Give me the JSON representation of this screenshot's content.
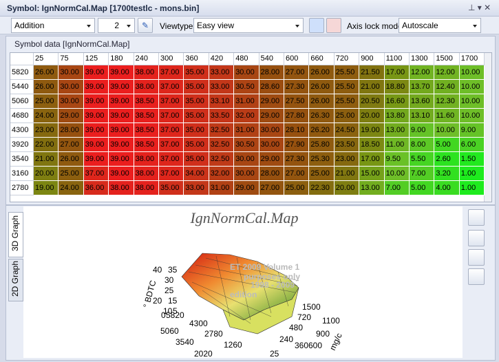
{
  "title_bar": {
    "title": "Symbol: IgnNormCal.Map [1700testlc - mons.bin]"
  },
  "toolbar": {
    "operation": "Addition",
    "factor": "2",
    "viewtype_label": "Viewtype",
    "viewtype": "Easy view",
    "axis_lock_label": "Axis lock mode",
    "axis_lock": "Autoscale"
  },
  "table": {
    "caption": "Symbol data [IgnNormCal.Map]",
    "columns": [
      "25",
      "75",
      "125",
      "180",
      "240",
      "300",
      "360",
      "420",
      "480",
      "540",
      "600",
      "660",
      "720",
      "900",
      "1100",
      "1300",
      "1500",
      "1700"
    ],
    "rows": [
      {
        "label": "5820",
        "values": [
          "26.00",
          "30.00",
          "39.00",
          "39.00",
          "38.00",
          "37.00",
          "35.00",
          "33.00",
          "30.00",
          "28.00",
          "27.00",
          "26.00",
          "25.50",
          "21.50",
          "17.00",
          "12.00",
          "12.00",
          "10.00"
        ]
      },
      {
        "label": "5440",
        "values": [
          "26.00",
          "30.00",
          "39.00",
          "39.00",
          "38.00",
          "37.00",
          "35.00",
          "33.00",
          "30.50",
          "28.60",
          "27.30",
          "26.00",
          "25.50",
          "21.00",
          "18.80",
          "13.70",
          "12.40",
          "10.00"
        ]
      },
      {
        "label": "5060",
        "values": [
          "25.00",
          "30.00",
          "39.00",
          "39.00",
          "38.50",
          "37.00",
          "35.00",
          "33.10",
          "31.00",
          "29.00",
          "27.50",
          "26.00",
          "25.50",
          "20.50",
          "16.60",
          "13.60",
          "12.30",
          "10.00"
        ]
      },
      {
        "label": "4680",
        "values": [
          "24.00",
          "29.00",
          "39.00",
          "39.00",
          "38.50",
          "37.00",
          "35.00",
          "33.50",
          "32.00",
          "29.00",
          "27.80",
          "26.30",
          "25.00",
          "20.00",
          "13.80",
          "13.10",
          "11.60",
          "10.00"
        ]
      },
      {
        "label": "4300",
        "values": [
          "23.00",
          "28.00",
          "39.00",
          "39.00",
          "38.50",
          "37.00",
          "35.00",
          "32.50",
          "31.00",
          "30.00",
          "28.10",
          "26.20",
          "24.50",
          "19.00",
          "13.00",
          "9.00",
          "10.00",
          "9.00"
        ]
      },
      {
        "label": "3920",
        "values": [
          "22.00",
          "27.00",
          "39.00",
          "39.00",
          "38.50",
          "37.00",
          "35.00",
          "32.50",
          "30.50",
          "30.00",
          "27.90",
          "25.80",
          "23.50",
          "18.50",
          "11.00",
          "8.00",
          "5.00",
          "6.00"
        ]
      },
      {
        "label": "3540",
        "values": [
          "21.00",
          "26.00",
          "39.00",
          "39.00",
          "38.00",
          "37.00",
          "35.00",
          "32.50",
          "30.00",
          "29.00",
          "27.30",
          "25.30",
          "23.00",
          "17.00",
          "9.50",
          "5.50",
          "2.60",
          "1.50"
        ]
      },
      {
        "label": "3160",
        "values": [
          "20.00",
          "25.00",
          "37.00",
          "39.00",
          "38.00",
          "37.00",
          "34.00",
          "32.00",
          "30.00",
          "28.00",
          "27.00",
          "25.00",
          "21.00",
          "15.00",
          "10.00",
          "7.00",
          "3.20",
          "1.00"
        ]
      },
      {
        "label": "2780",
        "values": [
          "19.00",
          "24.00",
          "36.00",
          "38.00",
          "38.00",
          "35.00",
          "33.00",
          "31.00",
          "29.00",
          "27.00",
          "25.00",
          "22.30",
          "20.00",
          "13.00",
          "7.00",
          "5.00",
          "4.00",
          "1.00"
        ]
      }
    ]
  },
  "graph": {
    "tabs": [
      "3D Graph",
      "2D Graph"
    ],
    "title": "IgnNormCal.Map",
    "z_label": "° BDTC",
    "x_label": "mg/c",
    "z_ticks": [
      "40",
      "35",
      "30",
      "25",
      "20",
      "15",
      "10",
      "5",
      "0"
    ],
    "rpm_ticks": [
      "5820",
      "4300",
      "5060",
      "2780",
      "3540",
      "1260",
      "2020"
    ],
    "mg_ticks": [
      "1500",
      "720",
      "1100",
      "480",
      "900",
      "240",
      "600",
      "360",
      "25"
    ],
    "watermark": [
      "ET 2009 Volume 1",
      "purposes only",
      "1998 - 2009",
      "edition"
    ]
  }
}
